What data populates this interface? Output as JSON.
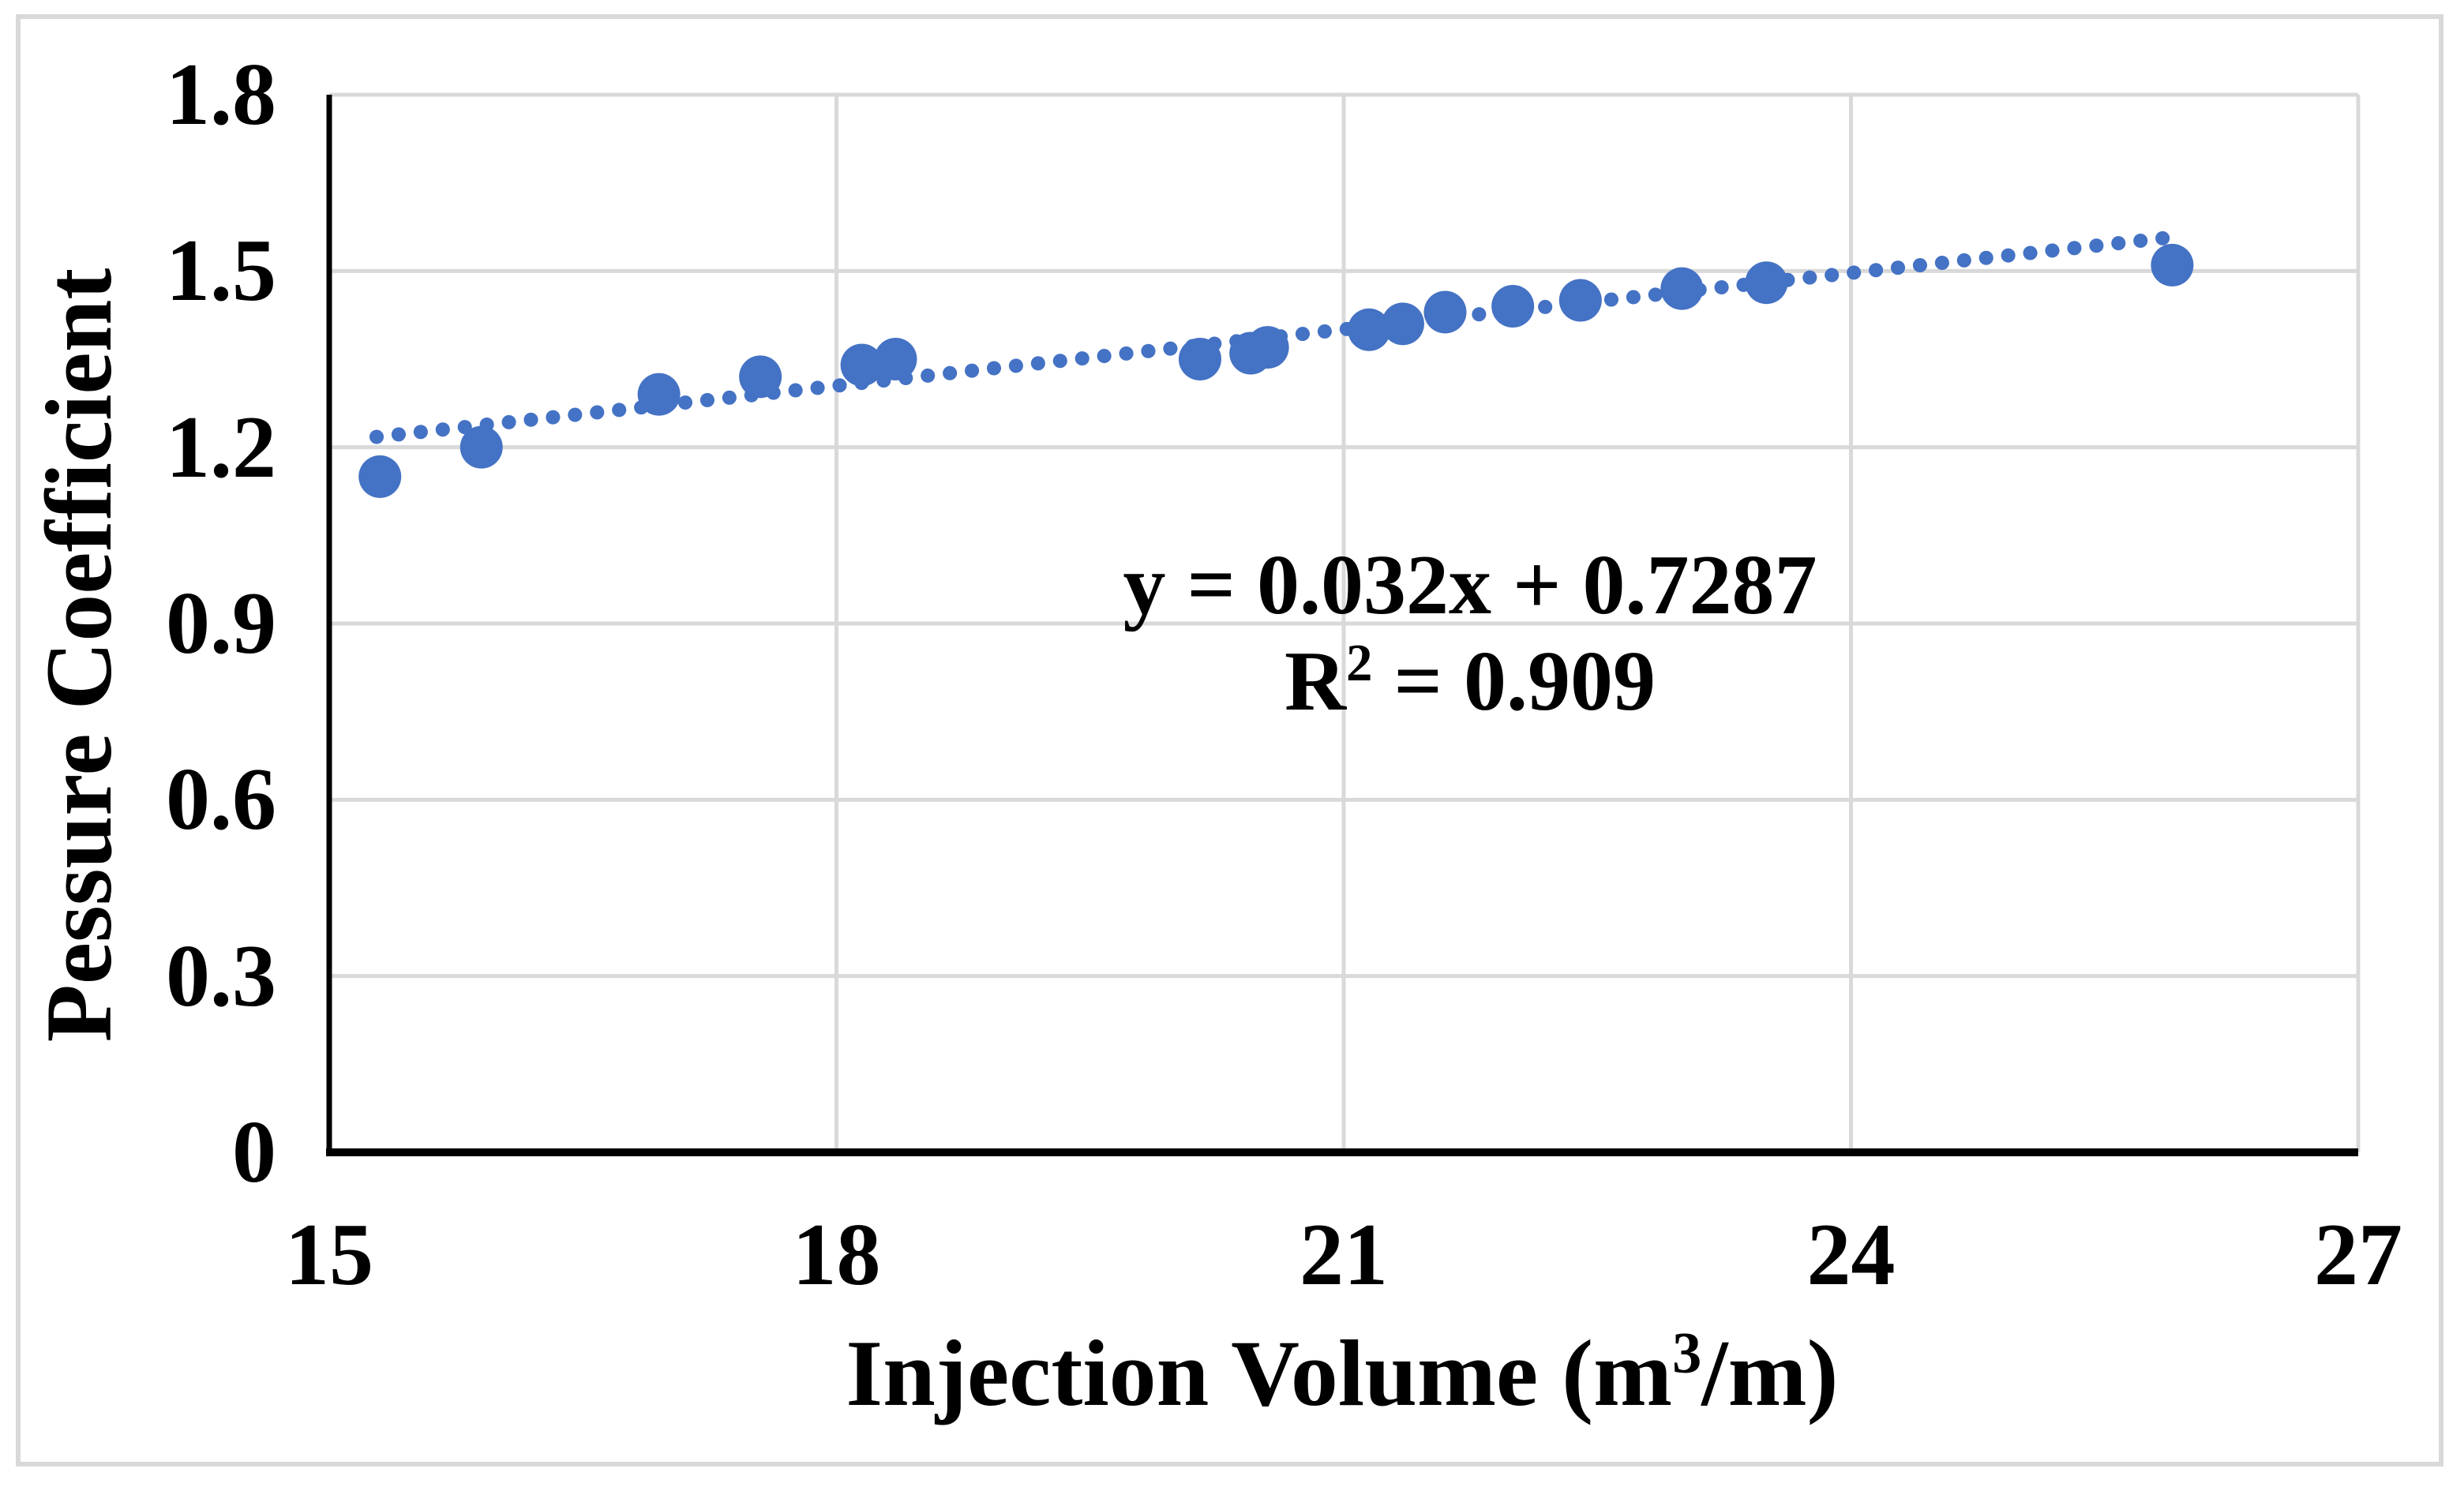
{
  "figure": {
    "background_color": "#ffffff",
    "frame_color": "#d9d9d9"
  },
  "chart_data": {
    "type": "scatter",
    "title": "",
    "xlabel_pre": "Injection Volume (m",
    "xlabel_sup": "3",
    "xlabel_post": "/m)",
    "ylabel": "Pessure Coefficient",
    "xlim": [
      15,
      27
    ],
    "ylim": [
      0,
      1.8
    ],
    "x_ticks": [
      15,
      18,
      21,
      24,
      27
    ],
    "x_tick_labels": [
      "15",
      "18",
      "21",
      "24",
      "27"
    ],
    "y_ticks": [
      0,
      0.3,
      0.6,
      0.9,
      1.2,
      1.5,
      1.8
    ],
    "y_tick_labels": [
      "0",
      "0.3",
      "0.6",
      "0.9",
      "1.2",
      "1.5",
      "1.8"
    ],
    "grid": true,
    "legend": "none",
    "marker_color": "#4472c4",
    "trendline_color": "#4472c4",
    "gridline_color": "#d9d9d9",
    "axis_color": "#000000",
    "points": [
      [
        15.3,
        1.15
      ],
      [
        15.9,
        1.2
      ],
      [
        16.95,
        1.29
      ],
      [
        17.55,
        1.32
      ],
      [
        18.15,
        1.34
      ],
      [
        18.35,
        1.35
      ],
      [
        20.15,
        1.35
      ],
      [
        20.45,
        1.36
      ],
      [
        20.55,
        1.37
      ],
      [
        21.15,
        1.4
      ],
      [
        21.35,
        1.41
      ],
      [
        21.6,
        1.43
      ],
      [
        22.0,
        1.44
      ],
      [
        22.4,
        1.45
      ],
      [
        23.0,
        1.47
      ],
      [
        23.5,
        1.48
      ],
      [
        25.9,
        1.51
      ]
    ],
    "trendline": {
      "type": "linear",
      "slope": 0.032,
      "intercept": 0.7287,
      "x_start": 15.28,
      "x_end": 25.85,
      "style": "dotted",
      "equation": "y = 0.032x + 0.7287",
      "r2_pre": "R",
      "r2_sup": "2",
      "r2_post": " = 0.909"
    }
  }
}
